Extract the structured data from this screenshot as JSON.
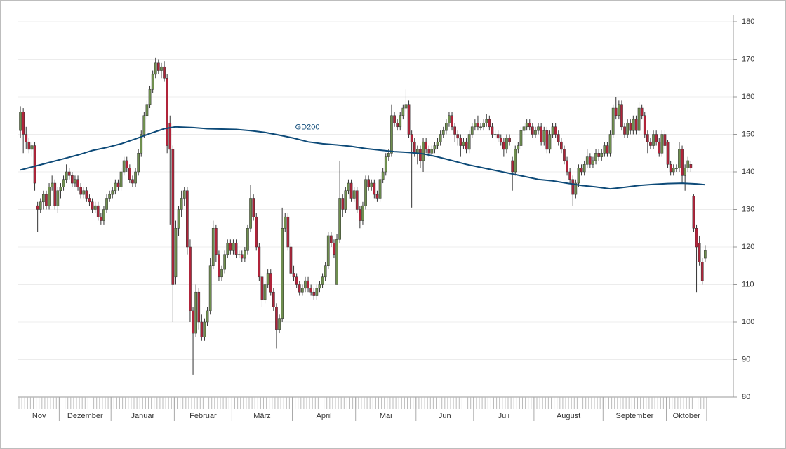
{
  "chart_data": {
    "type": "candlestick",
    "up_color": "#6f8f4f",
    "down_color": "#b0243a",
    "ylim": [
      80,
      180
    ],
    "yticks": [
      80,
      90,
      100,
      110,
      120,
      130,
      140,
      150,
      160,
      170,
      180
    ],
    "grid": true,
    "months": [
      "Nov",
      "Dezember",
      "Januar",
      "Februar",
      "März",
      "April",
      "Mai",
      "Jun",
      "Juli",
      "August",
      "September",
      "Oktober"
    ],
    "month_starts": [
      0,
      14,
      32,
      54,
      74,
      95,
      117,
      138,
      158,
      179,
      203,
      225
    ],
    "candles": [
      [
        151,
        157.5,
        149,
        156
      ],
      [
        156,
        157,
        145,
        150
      ],
      [
        150,
        152,
        146,
        148
      ],
      [
        148,
        149,
        145,
        146
      ],
      [
        146,
        148,
        144,
        147
      ],
      [
        147,
        148,
        135,
        137
      ],
      [
        131,
        132,
        124,
        130
      ],
      [
        130,
        133,
        129,
        132
      ],
      [
        132,
        135,
        130,
        134
      ],
      [
        134,
        135,
        130,
        131
      ],
      [
        131,
        137,
        130,
        136
      ],
      [
        136,
        139,
        135,
        137
      ],
      [
        137,
        138,
        130,
        131
      ],
      [
        131,
        136,
        129,
        135
      ],
      [
        135,
        137,
        133,
        136
      ],
      [
        136,
        139,
        135,
        138
      ],
      [
        138,
        142,
        137,
        140
      ],
      [
        140,
        141,
        138,
        139
      ],
      [
        139,
        140,
        136,
        137
      ],
      [
        137,
        139,
        136,
        138
      ],
      [
        138,
        139,
        135,
        136
      ],
      [
        136,
        137,
        133,
        134
      ],
      [
        134,
        136,
        133,
        135
      ],
      [
        135,
        136,
        132,
        133
      ],
      [
        133,
        134,
        131,
        132
      ],
      [
        132,
        133,
        129,
        130
      ],
      [
        130,
        132,
        129,
        131
      ],
      [
        131,
        132,
        127,
        128
      ],
      [
        128,
        129,
        126,
        127
      ],
      [
        127,
        131,
        126,
        130
      ],
      [
        130,
        134,
        129,
        133
      ],
      [
        133,
        135,
        132,
        134
      ],
      [
        134,
        136,
        133,
        135
      ],
      [
        135,
        138,
        134,
        137
      ],
      [
        137,
        138,
        135,
        136
      ],
      [
        136,
        141,
        135,
        140
      ],
      [
        140,
        144,
        139,
        143
      ],
      [
        143,
        144,
        140,
        141
      ],
      [
        141,
        142,
        137,
        138
      ],
      [
        138,
        139,
        136,
        137
      ],
      [
        137,
        141,
        136,
        140
      ],
      [
        140,
        146,
        139,
        145
      ],
      [
        145,
        151,
        144,
        150
      ],
      [
        150,
        156,
        149,
        155
      ],
      [
        155,
        159,
        154,
        158
      ],
      [
        158,
        163,
        157,
        162
      ],
      [
        162,
        167,
        161,
        166
      ],
      [
        166,
        170.5,
        165,
        169
      ],
      [
        169,
        170,
        166,
        167
      ],
      [
        167,
        169,
        165,
        168
      ],
      [
        168,
        169.5,
        164,
        165
      ],
      [
        165,
        166,
        145,
        147
      ],
      [
        153,
        155,
        126,
        146
      ],
      [
        146,
        147,
        100,
        110
      ],
      [
        112,
        127,
        110,
        125
      ],
      [
        125,
        131,
        123,
        130
      ],
      [
        130,
        135,
        128,
        133
      ],
      [
        133,
        136,
        131,
        135
      ],
      [
        135,
        136,
        118,
        120
      ],
      [
        120,
        122,
        100,
        103
      ],
      [
        103,
        104,
        86,
        97
      ],
      [
        97,
        110,
        96,
        108
      ],
      [
        108,
        109,
        98,
        100
      ],
      [
        100,
        102,
        95,
        96
      ],
      [
        96,
        101,
        95,
        100
      ],
      [
        100,
        104,
        99,
        103
      ],
      [
        103,
        117,
        102,
        115
      ],
      [
        115,
        127,
        114,
        125
      ],
      [
        125,
        126,
        116,
        118
      ],
      [
        118,
        119,
        111,
        112
      ],
      [
        112,
        115,
        111,
        114
      ],
      [
        114,
        119,
        113,
        118
      ],
      [
        118,
        122,
        117,
        121
      ],
      [
        121,
        122,
        118,
        119
      ],
      [
        119,
        122,
        118,
        121
      ],
      [
        121,
        122,
        117,
        118
      ],
      [
        118,
        119,
        117,
        118
      ],
      [
        118,
        119,
        116,
        117
      ],
      [
        117,
        120,
        116,
        119
      ],
      [
        119,
        126,
        118,
        125
      ],
      [
        125,
        136.5,
        124,
        133
      ],
      [
        133,
        134,
        127,
        128
      ],
      [
        128,
        129,
        119,
        120
      ],
      [
        120,
        121,
        111,
        112
      ],
      [
        112,
        113,
        104,
        106
      ],
      [
        106,
        111,
        105,
        110
      ],
      [
        110,
        114,
        109,
        113
      ],
      [
        113,
        114,
        107,
        108
      ],
      [
        108,
        109,
        103,
        104
      ],
      [
        104,
        105,
        93,
        98
      ],
      [
        98,
        102,
        97,
        101
      ],
      [
        101,
        130.5,
        100,
        125
      ],
      [
        125,
        129,
        124,
        128
      ],
      [
        128,
        129,
        119,
        120
      ],
      [
        120,
        121,
        112,
        113
      ],
      [
        113,
        115,
        111,
        112
      ],
      [
        112,
        113,
        109,
        110
      ],
      [
        110,
        111,
        107,
        108
      ],
      [
        108,
        110,
        107,
        109
      ],
      [
        109,
        112,
        108,
        111
      ],
      [
        111,
        112,
        108,
        109
      ],
      [
        109,
        110,
        107,
        108
      ],
      [
        108,
        109,
        106,
        107
      ],
      [
        107,
        110,
        106,
        109
      ],
      [
        109,
        111,
        108,
        110
      ],
      [
        110,
        113,
        109,
        112
      ],
      [
        112,
        116,
        111,
        115
      ],
      [
        115,
        124,
        114,
        123
      ],
      [
        123,
        124,
        120,
        121
      ],
      [
        121,
        122,
        117,
        118
      ],
      [
        110,
        123.5,
        110,
        122
      ],
      [
        122,
        143,
        121,
        133
      ],
      [
        133,
        134,
        128,
        130
      ],
      [
        130,
        136,
        129,
        135
      ],
      [
        135,
        138,
        134,
        137
      ],
      [
        137,
        138,
        132,
        133
      ],
      [
        133,
        136,
        132,
        135
      ],
      [
        135,
        136,
        129,
        130
      ],
      [
        130,
        131,
        125,
        127
      ],
      [
        127,
        132,
        126,
        131
      ],
      [
        131,
        139,
        130,
        138
      ],
      [
        138,
        139,
        135,
        136
      ],
      [
        136,
        138,
        135,
        137
      ],
      [
        137,
        138,
        133,
        134
      ],
      [
        134,
        135,
        132,
        133
      ],
      [
        133,
        139,
        132,
        138
      ],
      [
        138,
        141,
        137,
        140
      ],
      [
        140,
        145,
        139,
        144
      ],
      [
        144,
        146,
        143,
        145
      ],
      [
        145,
        158,
        144,
        155
      ],
      [
        155,
        156,
        152,
        153
      ],
      [
        153,
        154,
        151,
        152
      ],
      [
        152,
        156,
        151,
        155
      ],
      [
        155,
        158,
        154,
        157
      ],
      [
        157,
        162,
        156,
        158
      ],
      [
        158,
        159,
        149,
        150
      ],
      [
        150,
        151,
        130.5,
        148
      ],
      [
        148,
        149,
        144,
        145
      ],
      [
        145,
        147,
        142,
        146
      ],
      [
        146,
        147,
        141,
        143
      ],
      [
        143,
        149,
        140,
        148
      ],
      [
        148,
        149,
        145,
        146
      ],
      [
        146,
        147,
        144,
        145
      ],
      [
        145,
        147,
        144,
        146
      ],
      [
        146,
        148,
        145,
        147
      ],
      [
        147,
        149,
        146,
        148
      ],
      [
        148,
        151,
        147,
        150
      ],
      [
        150,
        152,
        149,
        151
      ],
      [
        151,
        154,
        150,
        153
      ],
      [
        153,
        156,
        152,
        155
      ],
      [
        155,
        156,
        151,
        152
      ],
      [
        152,
        153,
        148,
        150
      ],
      [
        150,
        151,
        147,
        149
      ],
      [
        149,
        150,
        144,
        147
      ],
      [
        147,
        149,
        146,
        148
      ],
      [
        148,
        149,
        145,
        146
      ],
      [
        146,
        151,
        145,
        150
      ],
      [
        150,
        153,
        149,
        152
      ],
      [
        152,
        154,
        151,
        153
      ],
      [
        153,
        155,
        151,
        152
      ],
      [
        152,
        153,
        151,
        152
      ],
      [
        152,
        154,
        151,
        153
      ],
      [
        153,
        155.5,
        152,
        154
      ],
      [
        154,
        155,
        151,
        152
      ],
      [
        152,
        153,
        149,
        150
      ],
      [
        150,
        151,
        149,
        150
      ],
      [
        150,
        151,
        148,
        149
      ],
      [
        149,
        150,
        147,
        148
      ],
      [
        148,
        149,
        144,
        146
      ],
      [
        146,
        150,
        145,
        149
      ],
      [
        149,
        150,
        147,
        148
      ],
      [
        143,
        144,
        135,
        140
      ],
      [
        140,
        147,
        139,
        146
      ],
      [
        146,
        148,
        145,
        147
      ],
      [
        147,
        152,
        146,
        151
      ],
      [
        151,
        153,
        150,
        152
      ],
      [
        152,
        154,
        151,
        153
      ],
      [
        153,
        154,
        151,
        152
      ],
      [
        152,
        153,
        149,
        150
      ],
      [
        150,
        152,
        149,
        151
      ],
      [
        151,
        153,
        150,
        152
      ],
      [
        152,
        153,
        147,
        148
      ],
      [
        148,
        152,
        147,
        151
      ],
      [
        151,
        152,
        145,
        146
      ],
      [
        146,
        151,
        145,
        150
      ],
      [
        150,
        153,
        149,
        152
      ],
      [
        152,
        153,
        149,
        150
      ],
      [
        150,
        151,
        147,
        148
      ],
      [
        148,
        149,
        145,
        146
      ],
      [
        146,
        147,
        142,
        143
      ],
      [
        143,
        144,
        139,
        140
      ],
      [
        140,
        141,
        137,
        138
      ],
      [
        138,
        139,
        131,
        134
      ],
      [
        134,
        138,
        133,
        137
      ],
      [
        137,
        142,
        136,
        141
      ],
      [
        141,
        142,
        139,
        140
      ],
      [
        140,
        143,
        139,
        142
      ],
      [
        142,
        146,
        141,
        144
      ],
      [
        144,
        145,
        141,
        142
      ],
      [
        142,
        144,
        141,
        143
      ],
      [
        143,
        146,
        142,
        145
      ],
      [
        145,
        146,
        143,
        144
      ],
      [
        144,
        146,
        143,
        145
      ],
      [
        145,
        148,
        144,
        147
      ],
      [
        147,
        148,
        144,
        145
      ],
      [
        145,
        151,
        144,
        150
      ],
      [
        150,
        158,
        149,
        157
      ],
      [
        157,
        160,
        154,
        155
      ],
      [
        155,
        159,
        154,
        158
      ],
      [
        158,
        159,
        151,
        152
      ],
      [
        152,
        153,
        149,
        150
      ],
      [
        150,
        154,
        149,
        153
      ],
      [
        153,
        154,
        150,
        151
      ],
      [
        151,
        155,
        150,
        154
      ],
      [
        154,
        155,
        150,
        151
      ],
      [
        151,
        158.5,
        150,
        157
      ],
      [
        157,
        158,
        154,
        155
      ],
      [
        155,
        156,
        149,
        150
      ],
      [
        150,
        151,
        145,
        148
      ],
      [
        148,
        149,
        146,
        147
      ],
      [
        147,
        151,
        146,
        150
      ],
      [
        150,
        151,
        147,
        148
      ],
      [
        148,
        149,
        144,
        145
      ],
      [
        145,
        151,
        144,
        150
      ],
      [
        150,
        151,
        146,
        147
      ],
      [
        148,
        148.5,
        141,
        142
      ],
      [
        142,
        143,
        139,
        140
      ],
      [
        140,
        142,
        139,
        141
      ],
      [
        141,
        142,
        140,
        141
      ],
      [
        141,
        148,
        140,
        146
      ],
      [
        146,
        147,
        137,
        139
      ],
      [
        139,
        142,
        135,
        141
      ],
      [
        141,
        144,
        140,
        143
      ],
      [
        142,
        143,
        140,
        141
      ],
      [
        133.5,
        134,
        124,
        125
      ],
      [
        125,
        126,
        108,
        120
      ],
      [
        121,
        123,
        115,
        116
      ],
      [
        116,
        117,
        110,
        111
      ],
      [
        117,
        120.5,
        116,
        119
      ]
    ],
    "ma": {
      "name": "GD200",
      "color": "#0d4a78",
      "x": [
        0,
        5,
        10,
        15,
        20,
        25,
        30,
        35,
        40,
        45,
        50,
        54,
        60,
        65,
        75,
        80,
        85,
        90,
        95,
        100,
        105,
        110,
        115,
        120,
        125,
        130,
        135,
        140,
        145,
        150,
        155,
        160,
        165,
        170,
        175,
        180,
        185,
        190,
        195,
        200,
        205,
        210,
        215,
        220,
        225,
        230,
        235,
        238
      ],
      "values": [
        140.5,
        141.5,
        142.5,
        143.5,
        144.5,
        145.7,
        146.5,
        147.5,
        148.8,
        150.2,
        151.5,
        152,
        151.8,
        151.5,
        151.3,
        151,
        150.5,
        149.8,
        149,
        148,
        147.5,
        147.2,
        146.8,
        146.2,
        145.8,
        145.4,
        145.2,
        144.8,
        144,
        143,
        142,
        141.2,
        140.4,
        139.6,
        138.8,
        138,
        137.6,
        137,
        136.4,
        136,
        135.5,
        135.9,
        136.4,
        136.7,
        136.9,
        137,
        136.8,
        136.6
      ]
    }
  }
}
